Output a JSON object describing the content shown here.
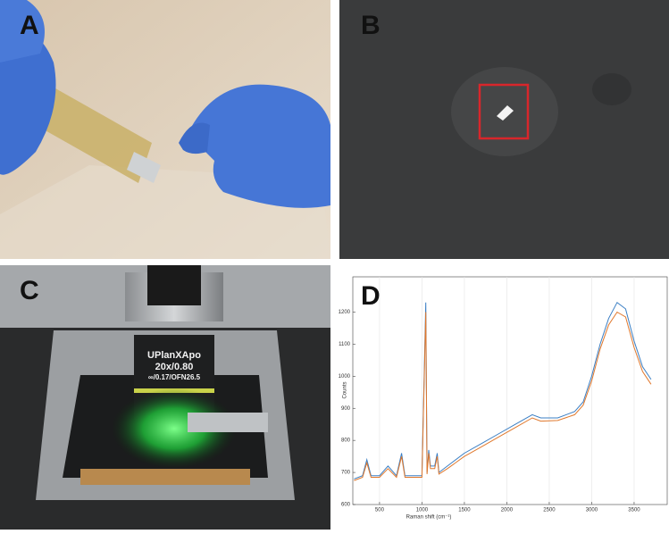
{
  "panels": [
    {
      "label": "A"
    },
    {
      "label": "B"
    },
    {
      "label": "C",
      "objective_text": [
        "UPlanXApo",
        "20x/0.80",
        "∞/0.17/OFN26.5"
      ]
    },
    {
      "label": "D"
    }
  ],
  "chart_data": {
    "type": "line",
    "x": [
      200,
      300,
      350,
      400,
      500,
      600,
      700,
      760,
      800,
      900,
      1000,
      1045,
      1060,
      1080,
      1100,
      1150,
      1180,
      1200,
      1300,
      1500,
      1700,
      1900,
      2100,
      2300,
      2400,
      2600,
      2800,
      2900,
      3000,
      3100,
      3200,
      3300,
      3400,
      3500,
      3600,
      3700
    ],
    "series": [
      {
        "color": "#3b7fc4",
        "values": [
          680,
          690,
          740,
          690,
          690,
          720,
          690,
          760,
          690,
          690,
          690,
          1230,
          700,
          770,
          720,
          720,
          760,
          700,
          720,
          760,
          790,
          820,
          850,
          880,
          870,
          870,
          890,
          920,
          1000,
          1100,
          1180,
          1230,
          1210,
          1110,
          1030,
          990
        ]
      },
      {
        "color": "#e0782c",
        "values": [
          675,
          685,
          730,
          685,
          685,
          712,
          685,
          750,
          685,
          685,
          685,
          1200,
          695,
          760,
          712,
          712,
          750,
          695,
          712,
          750,
          780,
          810,
          840,
          870,
          860,
          862,
          880,
          910,
          985,
          1085,
          1160,
          1200,
          1185,
          1090,
          1015,
          975
        ]
      }
    ],
    "xlim": [
      185,
      3890
    ],
    "ylim": [
      600,
      1310
    ],
    "xticks": [
      500,
      1000,
      1500,
      2000,
      2500,
      3000,
      3500
    ],
    "yticks": [
      600,
      700,
      800,
      900,
      1000,
      1100,
      1200
    ],
    "xlabel": "Raman shift (cm⁻¹)",
    "ylabel": "Counts"
  }
}
